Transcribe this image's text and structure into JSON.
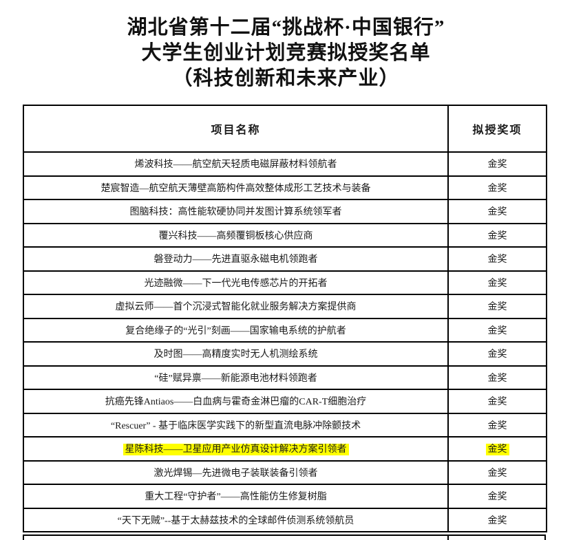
{
  "title": {
    "line1": "湖北省第十二届“挑战杯·中国银行”",
    "line2": "大学生创业计划竞赛拟授奖名单",
    "line3": "（科技创新和未来产业）"
  },
  "table": {
    "headers": [
      "项目名称",
      "拟授奖项"
    ],
    "highlight_color": "#ffff00",
    "rows": [
      {
        "project": "烯波科技——航空航天轻质电磁屏蔽材料领航者",
        "award": "金奖",
        "highlighted": false
      },
      {
        "project": "楚宸智造—航空航天薄壁高筋构件高效整体成形工艺技术与装备",
        "award": "金奖",
        "highlighted": false
      },
      {
        "project": "图脑科技：高性能软硬协同并发图计算系统领军者",
        "award": "金奖",
        "highlighted": false
      },
      {
        "project": "覆兴科技——高频覆铜板核心供应商",
        "award": "金奖",
        "highlighted": false
      },
      {
        "project": "磐登动力——先进直驱永磁电机领跑者",
        "award": "金奖",
        "highlighted": false
      },
      {
        "project": "光迹融微——下一代光电传感芯片的开拓者",
        "award": "金奖",
        "highlighted": false
      },
      {
        "project": "虚拟云师——首个沉浸式智能化就业服务解决方案提供商",
        "award": "金奖",
        "highlighted": false
      },
      {
        "project": "复合绝缘子的“光引”刻画——国家输电系统的护航者",
        "award": "金奖",
        "highlighted": false
      },
      {
        "project": "及时图——高精度实时无人机测绘系统",
        "award": "金奖",
        "highlighted": false
      },
      {
        "project": "“硅”赋异禀——新能源电池材料领跑者",
        "award": "金奖",
        "highlighted": false
      },
      {
        "project": "抗癌先锋Antiaos——白血病与霍奇金淋巴瘤的CAR-T细胞治疗",
        "award": "金奖",
        "highlighted": false
      },
      {
        "project": "“Rescuer” - 基于临床医学实践下的新型直流电脉冲除颤技术",
        "award": "金奖",
        "highlighted": false
      },
      {
        "project": "星陈科技——卫星应用产业仿真设计解决方案引领者",
        "award": "金奖",
        "highlighted": true
      },
      {
        "project": "激光焊锡—先进微电子装联装备引领者",
        "award": "金奖",
        "highlighted": false
      },
      {
        "project": "重大工程“守护者”——高性能仿生修复树脂",
        "award": "金奖",
        "highlighted": false
      },
      {
        "project": "“天下无贼”--基于太赫兹技术的全球邮件侦测系统领航员",
        "award": "金奖",
        "highlighted": false
      }
    ]
  }
}
